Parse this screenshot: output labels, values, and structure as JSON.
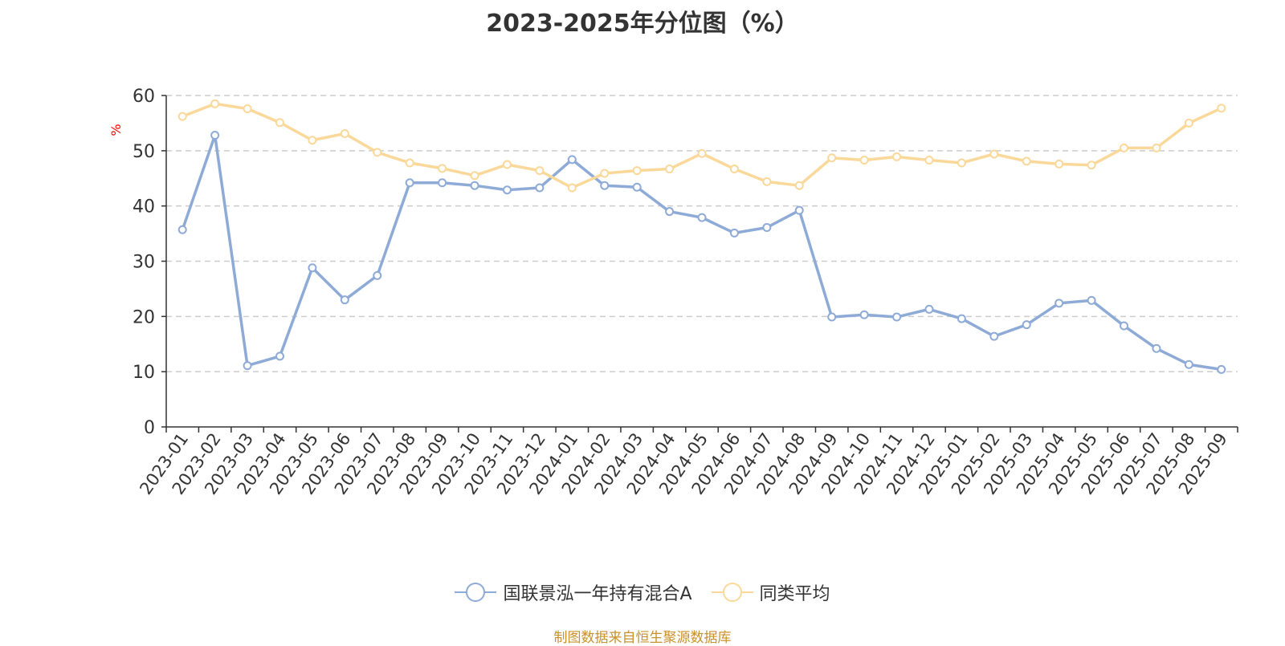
{
  "chart_data": {
    "type": "line",
    "title": "2023-2025年分位图（%）",
    "ylabel": "%",
    "ylim": [
      0,
      60
    ],
    "yticks": [
      0,
      10,
      20,
      30,
      40,
      50,
      60
    ],
    "grid": true,
    "legend_position": "bottom-center",
    "categories": [
      "2023-01",
      "2023-02",
      "2023-03",
      "2023-04",
      "2023-05",
      "2023-06",
      "2023-07",
      "2023-08",
      "2023-09",
      "2023-10",
      "2023-11",
      "2023-12",
      "2024-01",
      "2024-02",
      "2024-03",
      "2024-04",
      "2024-05",
      "2024-06",
      "2024-07",
      "2024-08",
      "2024-09",
      "2024-10",
      "2024-11",
      "2024-12",
      "2025-01",
      "2025-02",
      "2025-03",
      "2025-04",
      "2025-05",
      "2025-06",
      "2025-07",
      "2025-08",
      "2025-09"
    ],
    "series": [
      {
        "name": "国联景泓一年持有混合A",
        "color": "#8eaad6",
        "values": [
          35.7,
          52.8,
          11.1,
          12.8,
          28.8,
          23.0,
          27.4,
          44.2,
          44.2,
          43.7,
          42.9,
          43.3,
          48.4,
          43.7,
          43.4,
          39.0,
          37.9,
          35.1,
          36.1,
          39.2,
          19.9,
          20.3,
          19.9,
          21.3,
          19.6,
          16.4,
          18.5,
          22.4,
          22.9,
          18.3,
          14.2,
          11.3,
          10.4
        ]
      },
      {
        "name": "同类平均",
        "color": "#fad89a",
        "values": [
          56.2,
          58.5,
          57.6,
          55.1,
          51.9,
          53.1,
          49.7,
          47.8,
          46.8,
          45.5,
          47.5,
          46.4,
          43.3,
          45.9,
          46.4,
          46.7,
          49.5,
          46.7,
          44.4,
          43.7,
          48.7,
          48.3,
          48.9,
          48.3,
          47.8,
          49.4,
          48.1,
          47.6,
          47.4,
          50.5,
          50.5,
          55.0,
          57.7
        ]
      }
    ]
  },
  "source_note": "制图数据来自恒生聚源数据库",
  "colors": {
    "axis": "#333333",
    "grid": "#cccccc",
    "ylabel": "#ff0000",
    "source": "#c8912c",
    "text": "#333333"
  }
}
